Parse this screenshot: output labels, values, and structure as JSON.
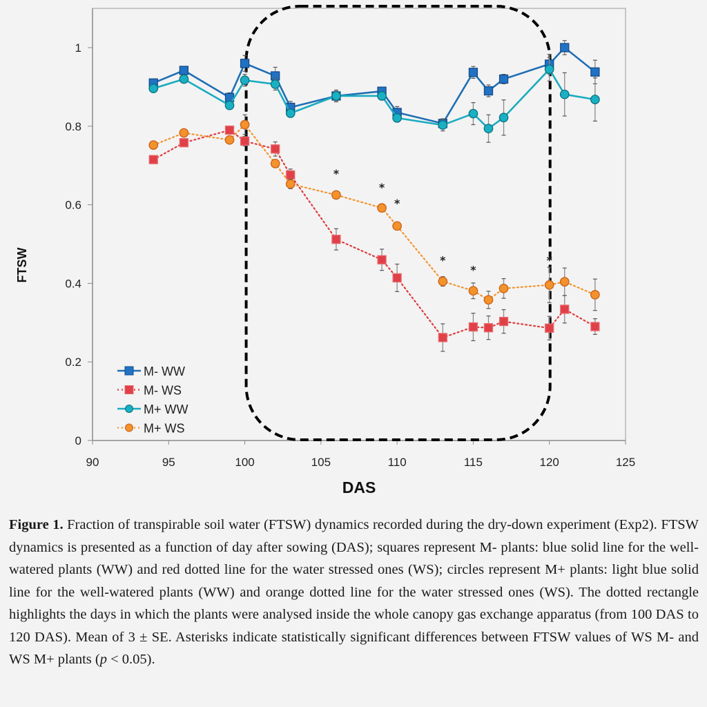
{
  "chart_data": {
    "type": "line",
    "title": "",
    "xlabel": "DAS",
    "ylabel": "FTSW",
    "xlim": [
      90,
      125
    ],
    "ylim": [
      0,
      1.1
    ],
    "xticks": [
      90,
      95,
      100,
      105,
      110,
      115,
      120,
      125
    ],
    "yticks": [
      0,
      0.2,
      0.4,
      0.6,
      0.8,
      1
    ],
    "ytick_labels": [
      "0",
      "0.2",
      "0.4",
      "0.6",
      "0.8",
      "1"
    ],
    "grid": false,
    "legend_position": "bottom-left",
    "x": [
      94,
      96,
      99,
      100,
      102,
      103,
      106,
      109,
      110,
      113,
      115,
      116,
      117,
      120,
      121,
      123
    ],
    "series": [
      {
        "name": "M- WW",
        "marker": "square",
        "line": "solid",
        "color": "#1f6fb5",
        "values": [
          0.91,
          0.942,
          0.873,
          0.96,
          0.928,
          0.848,
          0.877,
          0.889,
          0.835,
          0.807,
          0.937,
          0.89,
          0.92,
          0.958,
          1.0,
          0.938
        ],
        "errors": [
          0.005,
          0.008,
          0.012,
          0.02,
          0.022,
          0.015,
          0.012,
          0.01,
          0.015,
          0.012,
          0.015,
          0.015,
          0.012,
          0.025,
          0.018,
          0.03
        ]
      },
      {
        "name": "M- WS",
        "marker": "square",
        "line": "dotted",
        "color": "#e0393e",
        "values": [
          0.715,
          0.758,
          0.79,
          0.762,
          0.742,
          0.676,
          0.512,
          0.46,
          0.414,
          0.262,
          0.289,
          0.287,
          0.303,
          0.286,
          0.334,
          0.29
        ],
        "errors": [
          0.005,
          0.005,
          0.006,
          0.012,
          0.018,
          0.015,
          0.027,
          0.027,
          0.035,
          0.035,
          0.035,
          0.03,
          0.03,
          0.03,
          0.035,
          0.02
        ]
      },
      {
        "name": "M+ WW",
        "marker": "circle",
        "line": "solid",
        "color": "#1aabbf",
        "values": [
          0.896,
          0.92,
          0.853,
          0.917,
          0.907,
          0.833,
          0.877,
          0.877,
          0.821,
          0.803,
          0.832,
          0.794,
          0.822,
          0.945,
          0.881,
          0.868
        ],
        "errors": [
          0.005,
          0.006,
          0.008,
          0.015,
          0.015,
          0.01,
          0.015,
          0.008,
          0.01,
          0.015,
          0.028,
          0.035,
          0.045,
          0.03,
          0.055,
          0.055
        ]
      },
      {
        "name": "M+ WS",
        "marker": "circle",
        "line": "dotted",
        "color": "#f4922b",
        "values": [
          0.752,
          0.783,
          0.765,
          0.804,
          0.705,
          0.653,
          0.625,
          0.592,
          0.546,
          0.405,
          0.381,
          0.358,
          0.387,
          0.396,
          0.404,
          0.371
        ],
        "errors": [
          0.005,
          0.005,
          0.006,
          0.025,
          0.01,
          0.012,
          0.006,
          0.006,
          0.008,
          0.012,
          0.02,
          0.022,
          0.025,
          0.045,
          0.035,
          0.04
        ]
      }
    ],
    "significance_markers": [
      {
        "x": 106,
        "y": 0.68,
        "label": "*"
      },
      {
        "x": 109,
        "y": 0.645,
        "label": "*"
      },
      {
        "x": 110,
        "y": 0.605,
        "label": "*"
      },
      {
        "x": 113,
        "y": 0.46,
        "label": "*"
      },
      {
        "x": 115,
        "y": 0.435,
        "label": "*"
      },
      {
        "x": 120,
        "y": 0.46,
        "label": "*"
      }
    ],
    "highlight_region": {
      "x_from": 100,
      "x_to": 120,
      "style": "dashed rounded rectangle",
      "label": "canopy gas exchange period"
    }
  },
  "caption": {
    "label": "Figure 1.",
    "text": " Fraction of transpirable soil water (FTSW) dynamics recorded during the dry-down experiment (Exp2). FTSW dynamics is presented as a function of day after sowing (DAS); squares represent M- plants: blue solid line for the well-watered plants (WW) and red dotted line for the water stressed ones (WS); circles represent M+ plants: light blue solid line for the well-watered plants (WW) and orange dotted line for the water stressed ones (WS). The dotted rectangle highlights the days in which the plants were analysed inside the whole canopy gas exchange apparatus (from 100 DAS to 120 DAS). Mean of 3 ± SE. Asterisks indicate statistically significant differences between FTSW values of WS M- and WS M+ plants (",
    "italic": "p",
    "tail": " < 0.05)."
  }
}
